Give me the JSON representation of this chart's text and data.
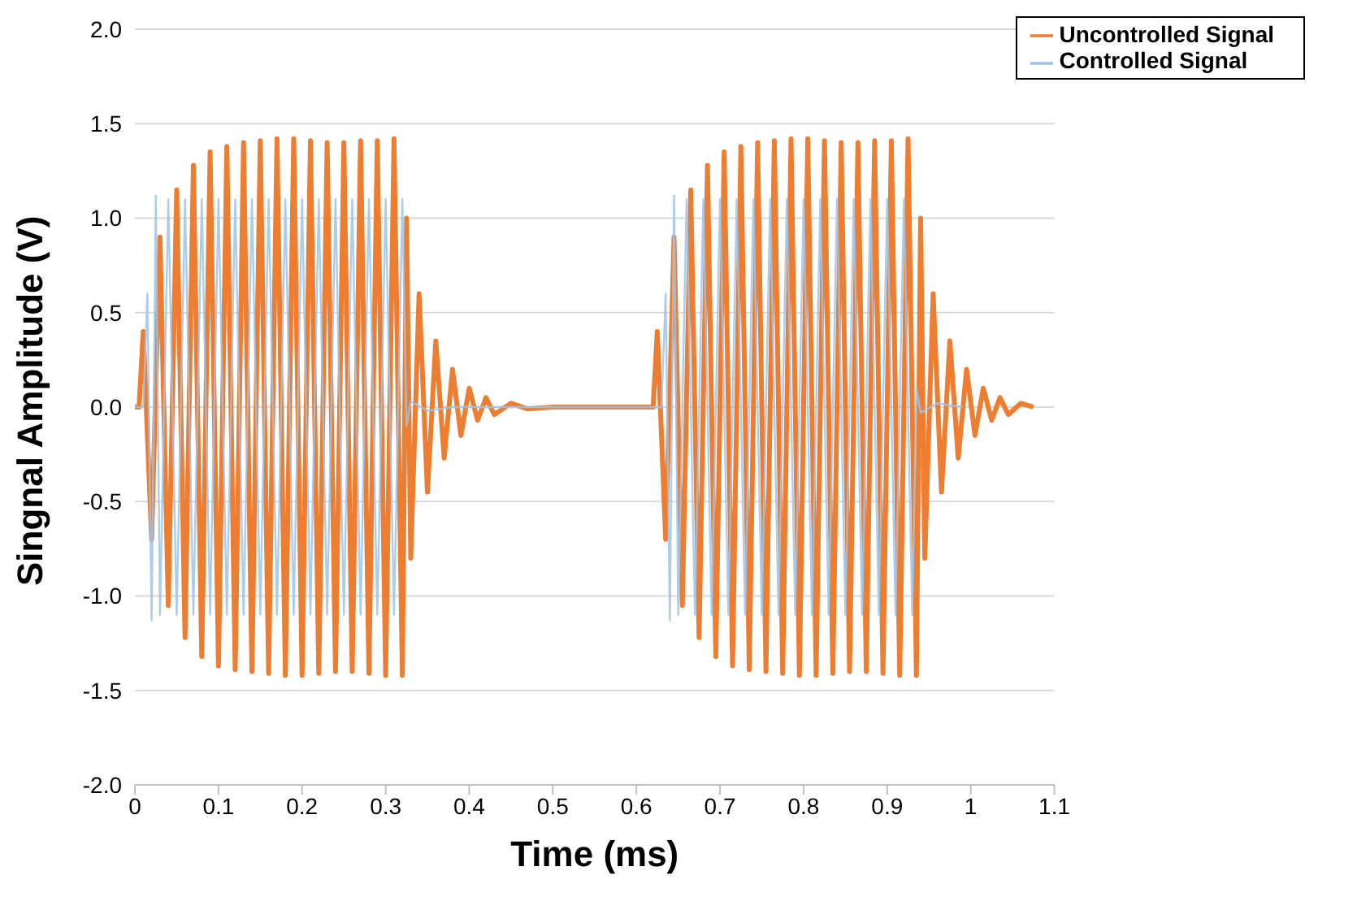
{
  "chart_data": {
    "type": "line",
    "xlabel": "Time (ms)",
    "ylabel": "Singnal Amplitude (V)",
    "xlim": [
      0,
      1.1
    ],
    "xticks": [
      0,
      0.1,
      0.2,
      0.3,
      0.4,
      0.5,
      0.6,
      0.7,
      0.8,
      0.9,
      1,
      1.1
    ],
    "ylim": [
      -2,
      2
    ],
    "yticks": [
      {
        "value": -2,
        "label": "-2.0"
      },
      {
        "value": -1.5,
        "label": "-1.5"
      },
      {
        "value": -1,
        "label": "-1.0"
      },
      {
        "value": -0.5,
        "label": "-0.5"
      },
      {
        "value": 0,
        "label": "0.0"
      },
      {
        "value": 0.5,
        "label": "0.5"
      },
      {
        "value": 1,
        "label": "1.0"
      },
      {
        "value": 1.5,
        "label": "1.5"
      },
      {
        "value": 2,
        "label": "2.0"
      }
    ],
    "grid": "y",
    "legend": "top right",
    "marker": "none",
    "line_style": "solid",
    "series": [
      {
        "name": "Uncontrolled Signal",
        "color": "#ed7d31",
        "x": [
          0,
          0.005,
          0.01,
          0.02,
          0.03,
          0.04,
          0.05,
          0.06,
          0.07,
          0.08,
          0.09,
          0.1,
          0.11,
          0.12,
          0.13,
          0.14,
          0.15,
          0.16,
          0.17,
          0.18,
          0.19,
          0.2,
          0.21,
          0.22,
          0.23,
          0.24,
          0.25,
          0.26,
          0.27,
          0.28,
          0.29,
          0.3,
          0.31,
          0.32,
          0.325,
          0.33,
          0.34,
          0.35,
          0.36,
          0.37,
          0.38,
          0.39,
          0.4,
          0.41,
          0.42,
          0.43,
          0.45,
          0.47,
          0.5,
          0.62,
          0.625,
          0.635,
          0.645,
          0.655,
          0.665,
          0.675,
          0.685,
          0.695,
          0.705,
          0.715,
          0.725,
          0.735,
          0.745,
          0.755,
          0.765,
          0.775,
          0.785,
          0.795,
          0.805,
          0.815,
          0.825,
          0.835,
          0.845,
          0.855,
          0.865,
          0.875,
          0.885,
          0.895,
          0.905,
          0.915,
          0.925,
          0.935,
          0.94,
          0.945,
          0.955,
          0.965,
          0.975,
          0.985,
          0.995,
          1.005,
          1.015,
          1.025,
          1.035,
          1.045,
          1.06,
          1.075
        ],
        "values": [
          0,
          0,
          0.4,
          -0.7,
          0.9,
          -1.05,
          1.15,
          -1.22,
          1.28,
          -1.32,
          1.35,
          -1.37,
          1.38,
          -1.39,
          1.4,
          -1.4,
          1.41,
          -1.41,
          1.42,
          -1.42,
          1.42,
          -1.42,
          1.41,
          -1.41,
          1.4,
          -1.4,
          1.4,
          -1.4,
          1.41,
          -1.41,
          1.41,
          -1.42,
          1.42,
          -1.42,
          1.0,
          -0.8,
          0.6,
          -0.45,
          0.35,
          -0.27,
          0.2,
          -0.15,
          0.1,
          -0.07,
          0.05,
          -0.04,
          0.02,
          -0.01,
          0,
          0,
          0.4,
          -0.7,
          0.9,
          -1.05,
          1.15,
          -1.22,
          1.28,
          -1.32,
          1.35,
          -1.37,
          1.38,
          -1.39,
          1.4,
          -1.4,
          1.41,
          -1.41,
          1.42,
          -1.42,
          1.42,
          -1.42,
          1.41,
          -1.41,
          1.4,
          -1.4,
          1.4,
          -1.4,
          1.41,
          -1.41,
          1.41,
          -1.42,
          1.42,
          -1.42,
          1.0,
          -0.8,
          0.6,
          -0.45,
          0.35,
          -0.27,
          0.2,
          -0.15,
          0.1,
          -0.07,
          0.05,
          -0.04,
          0.02,
          0
        ]
      },
      {
        "name": "Controlled Signal",
        "color": "#9dc3e6",
        "x": [
          0,
          0.01,
          0.015,
          0.02,
          0.025,
          0.03,
          0.04,
          0.05,
          0.06,
          0.07,
          0.08,
          0.09,
          0.1,
          0.11,
          0.12,
          0.13,
          0.14,
          0.15,
          0.16,
          0.17,
          0.18,
          0.19,
          0.2,
          0.21,
          0.22,
          0.23,
          0.24,
          0.25,
          0.26,
          0.27,
          0.28,
          0.29,
          0.3,
          0.31,
          0.32,
          0.325,
          0.33,
          0.35,
          0.38,
          0.63,
          0.635,
          0.64,
          0.645,
          0.65,
          0.66,
          0.67,
          0.68,
          0.69,
          0.7,
          0.71,
          0.72,
          0.73,
          0.74,
          0.75,
          0.76,
          0.77,
          0.78,
          0.79,
          0.8,
          0.81,
          0.82,
          0.83,
          0.84,
          0.85,
          0.86,
          0.87,
          0.88,
          0.89,
          0.9,
          0.91,
          0.92,
          0.93,
          0.935,
          0.94,
          0.96,
          0.99
        ],
        "values": [
          0,
          0,
          0.6,
          -1.13,
          1.12,
          -1.1,
          1.1,
          -1.1,
          1.1,
          -1.1,
          1.1,
          -1.1,
          1.1,
          -1.1,
          1.1,
          -1.1,
          1.1,
          -1.1,
          1.1,
          -1.1,
          1.1,
          -1.1,
          1.1,
          -1.1,
          1.1,
          -1.1,
          1.1,
          -1.1,
          1.1,
          -1.1,
          1.1,
          -1.1,
          1.1,
          -1.1,
          1.1,
          -0.1,
          0.03,
          -0.02,
          0,
          0,
          0.6,
          -1.13,
          1.12,
          -1.1,
          1.1,
          -1.1,
          1.1,
          -1.1,
          1.1,
          -1.1,
          1.1,
          -1.1,
          1.1,
          -1.1,
          1.1,
          -1.1,
          1.1,
          -1.1,
          1.1,
          -1.1,
          1.1,
          -1.1,
          1.1,
          -1.1,
          1.1,
          -1.1,
          1.1,
          -1.1,
          1.1,
          -1.1,
          1.1,
          -1.1,
          0.1,
          -0.03,
          0.02,
          0
        ]
      }
    ]
  }
}
